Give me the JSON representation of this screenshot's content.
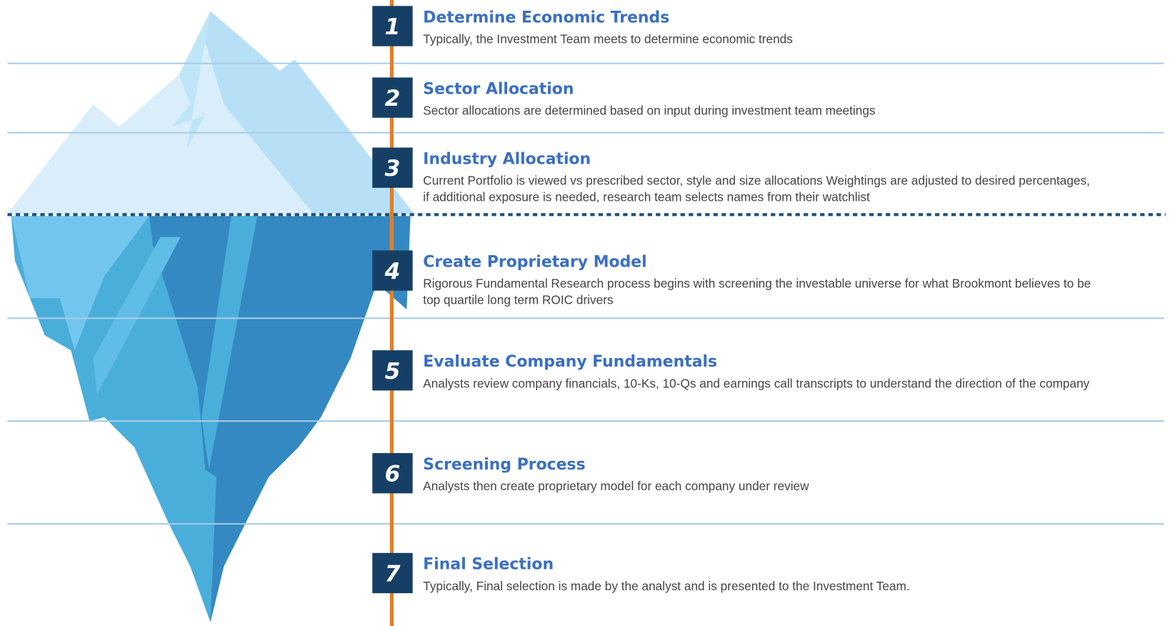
{
  "steps": [
    {
      "number": "1",
      "title": "Determine Economic Trends",
      "description": [
        "Typically, the Investment Team meets to determine economic trends"
      ]
    },
    {
      "number": "2",
      "title": "Sector Allocation",
      "description": [
        "Sector allocations are determined based on input during investment team meetings"
      ]
    },
    {
      "number": "3",
      "title": "Industry Allocation",
      "description": [
        "Current Portfolio is viewed vs prescribed sector, style and size allocations Weightings are adjusted to desired percentages,",
        "if additional exposure is needed, research team selects names from their watchlist"
      ]
    },
    {
      "number": "4",
      "title": "Create Proprietary Model",
      "description": [
        "Rigorous Fundamental Research process begins with screening the investable universe for what Brookmont believes to be",
        "top quartile long term ROIC drivers"
      ]
    },
    {
      "number": "5",
      "title": "Evaluate Company Fundamentals",
      "description": [
        "Analysts review company financials, 10-Ks, 10-Qs and earnings call transcripts to understand the direction of the company"
      ]
    },
    {
      "number": "6",
      "title": "Screening Process",
      "description": [
        "Analysts then create proprietary model for each company under review"
      ]
    },
    {
      "number": "7",
      "title": "Final Selection",
      "description": [
        "Typically, Final selection is made by the analyst and is presented to the Investment Team."
      ]
    }
  ]
}
